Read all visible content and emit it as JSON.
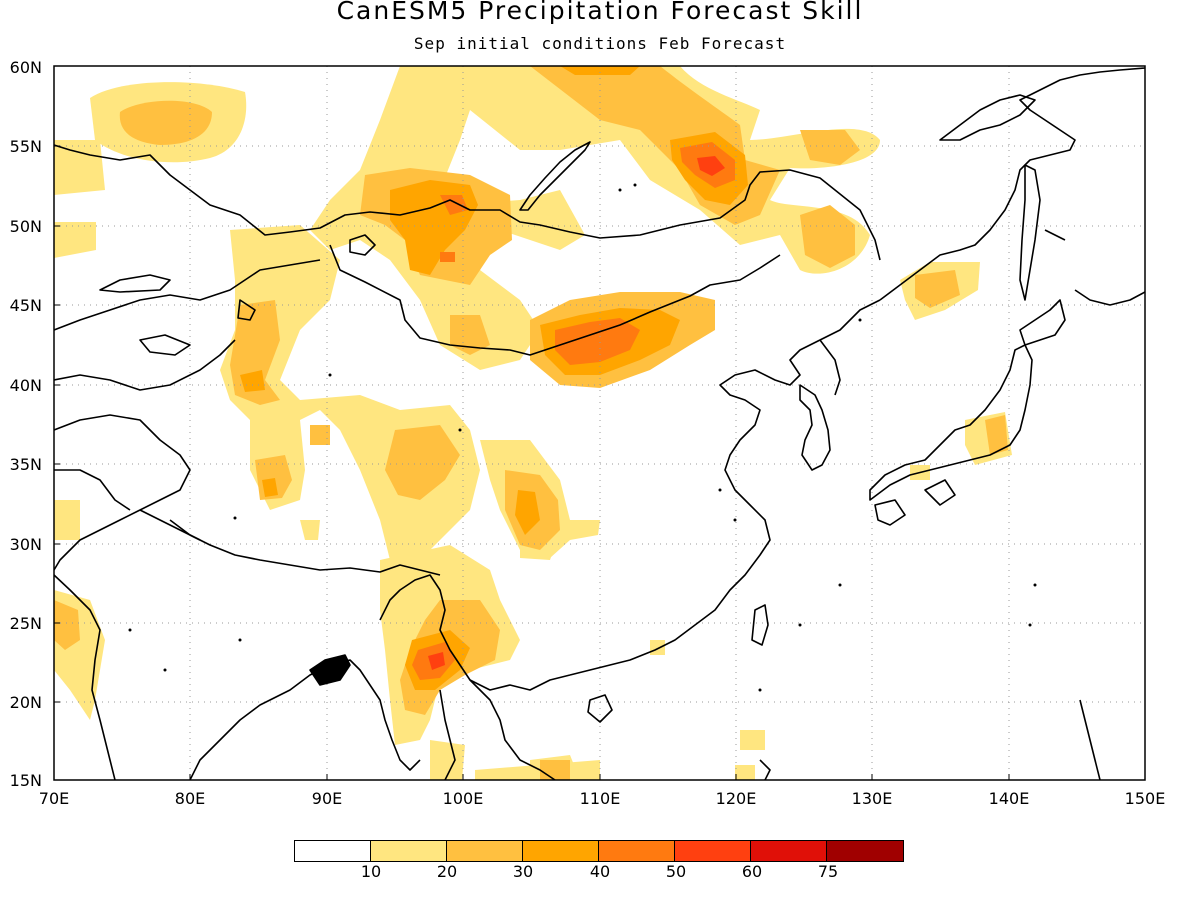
{
  "title": "CanESM5 Precipitation Forecast Skill",
  "subtitle": "Sep initial conditions  Feb Forecast",
  "lat_labels": [
    "60N",
    "55N",
    "50N",
    "45N",
    "40N",
    "35N",
    "30N",
    "25N",
    "20N",
    "15N"
  ],
  "lon_labels": [
    "70E",
    "80E",
    "90E",
    "100E",
    "110E",
    "120E",
    "130E",
    "140E",
    "150E"
  ],
  "colorbar": {
    "colors": [
      "#ffffff",
      "#ffe680",
      "#ffc040",
      "#ffa500",
      "#ff7a10",
      "#ff4010",
      "#e01008",
      "#a00000"
    ],
    "labels": [
      "10",
      "20",
      "30",
      "40",
      "50",
      "60",
      "75"
    ]
  },
  "colors": {
    "lvl1": "#ffe680",
    "lvl2": "#ffc040",
    "lvl3": "#ffa500",
    "lvl4": "#ff7a10",
    "lvl5": "#ff4010"
  }
}
